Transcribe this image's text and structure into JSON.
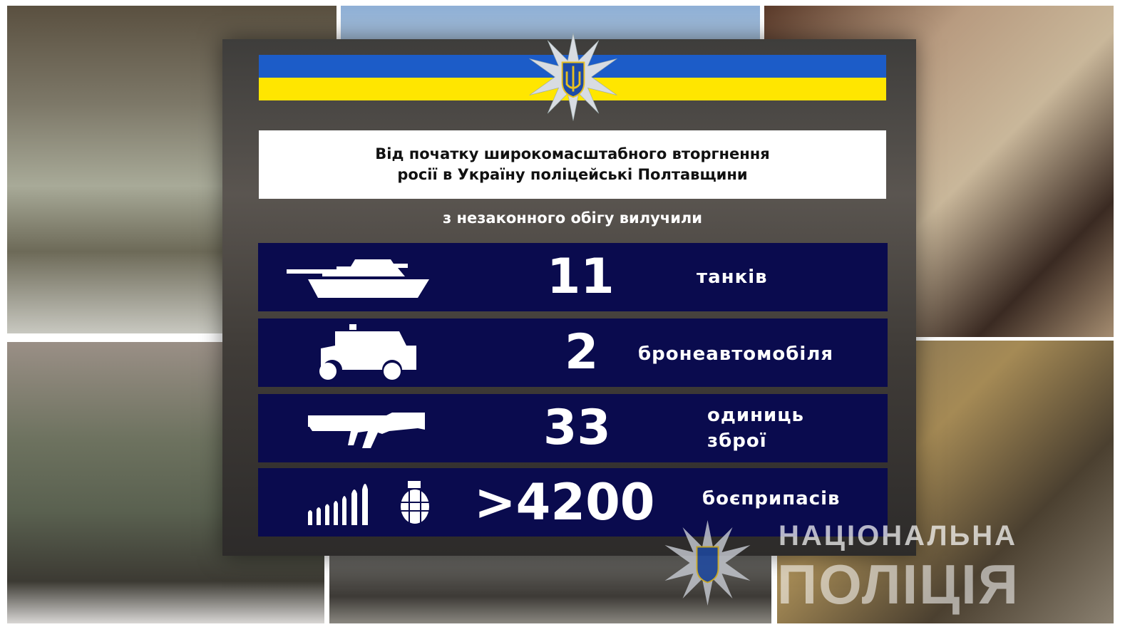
{
  "header": {
    "title_line1": "Від початку широкомасштабного вторгнення",
    "title_line2": "росії в Україну поліцейські Полтавщини",
    "subtitle": "з незаконного обігу вилучили"
  },
  "stats": [
    {
      "icon": "tank-icon",
      "value": "11",
      "label_line1": "танків",
      "label_line2": ""
    },
    {
      "icon": "armored-vehicle-icon",
      "value": "2",
      "label_line1": "бронеавтомобіля",
      "label_line2": ""
    },
    {
      "icon": "rifle-icon",
      "value": "33",
      "label_line1": "одиниць",
      "label_line2": "зброї"
    },
    {
      "icon": "ammunition-icon",
      "value": ">4200",
      "label_line1": "боєприпасів",
      "label_line2": ""
    }
  ],
  "watermark": {
    "line1": "НАЦІОНАЛЬНА",
    "line2": "ПОЛІЦІЯ"
  },
  "colors": {
    "flag_blue": "#1c5cc8",
    "flag_yellow": "#ffe600",
    "row_bg": "#0a0b4e"
  }
}
